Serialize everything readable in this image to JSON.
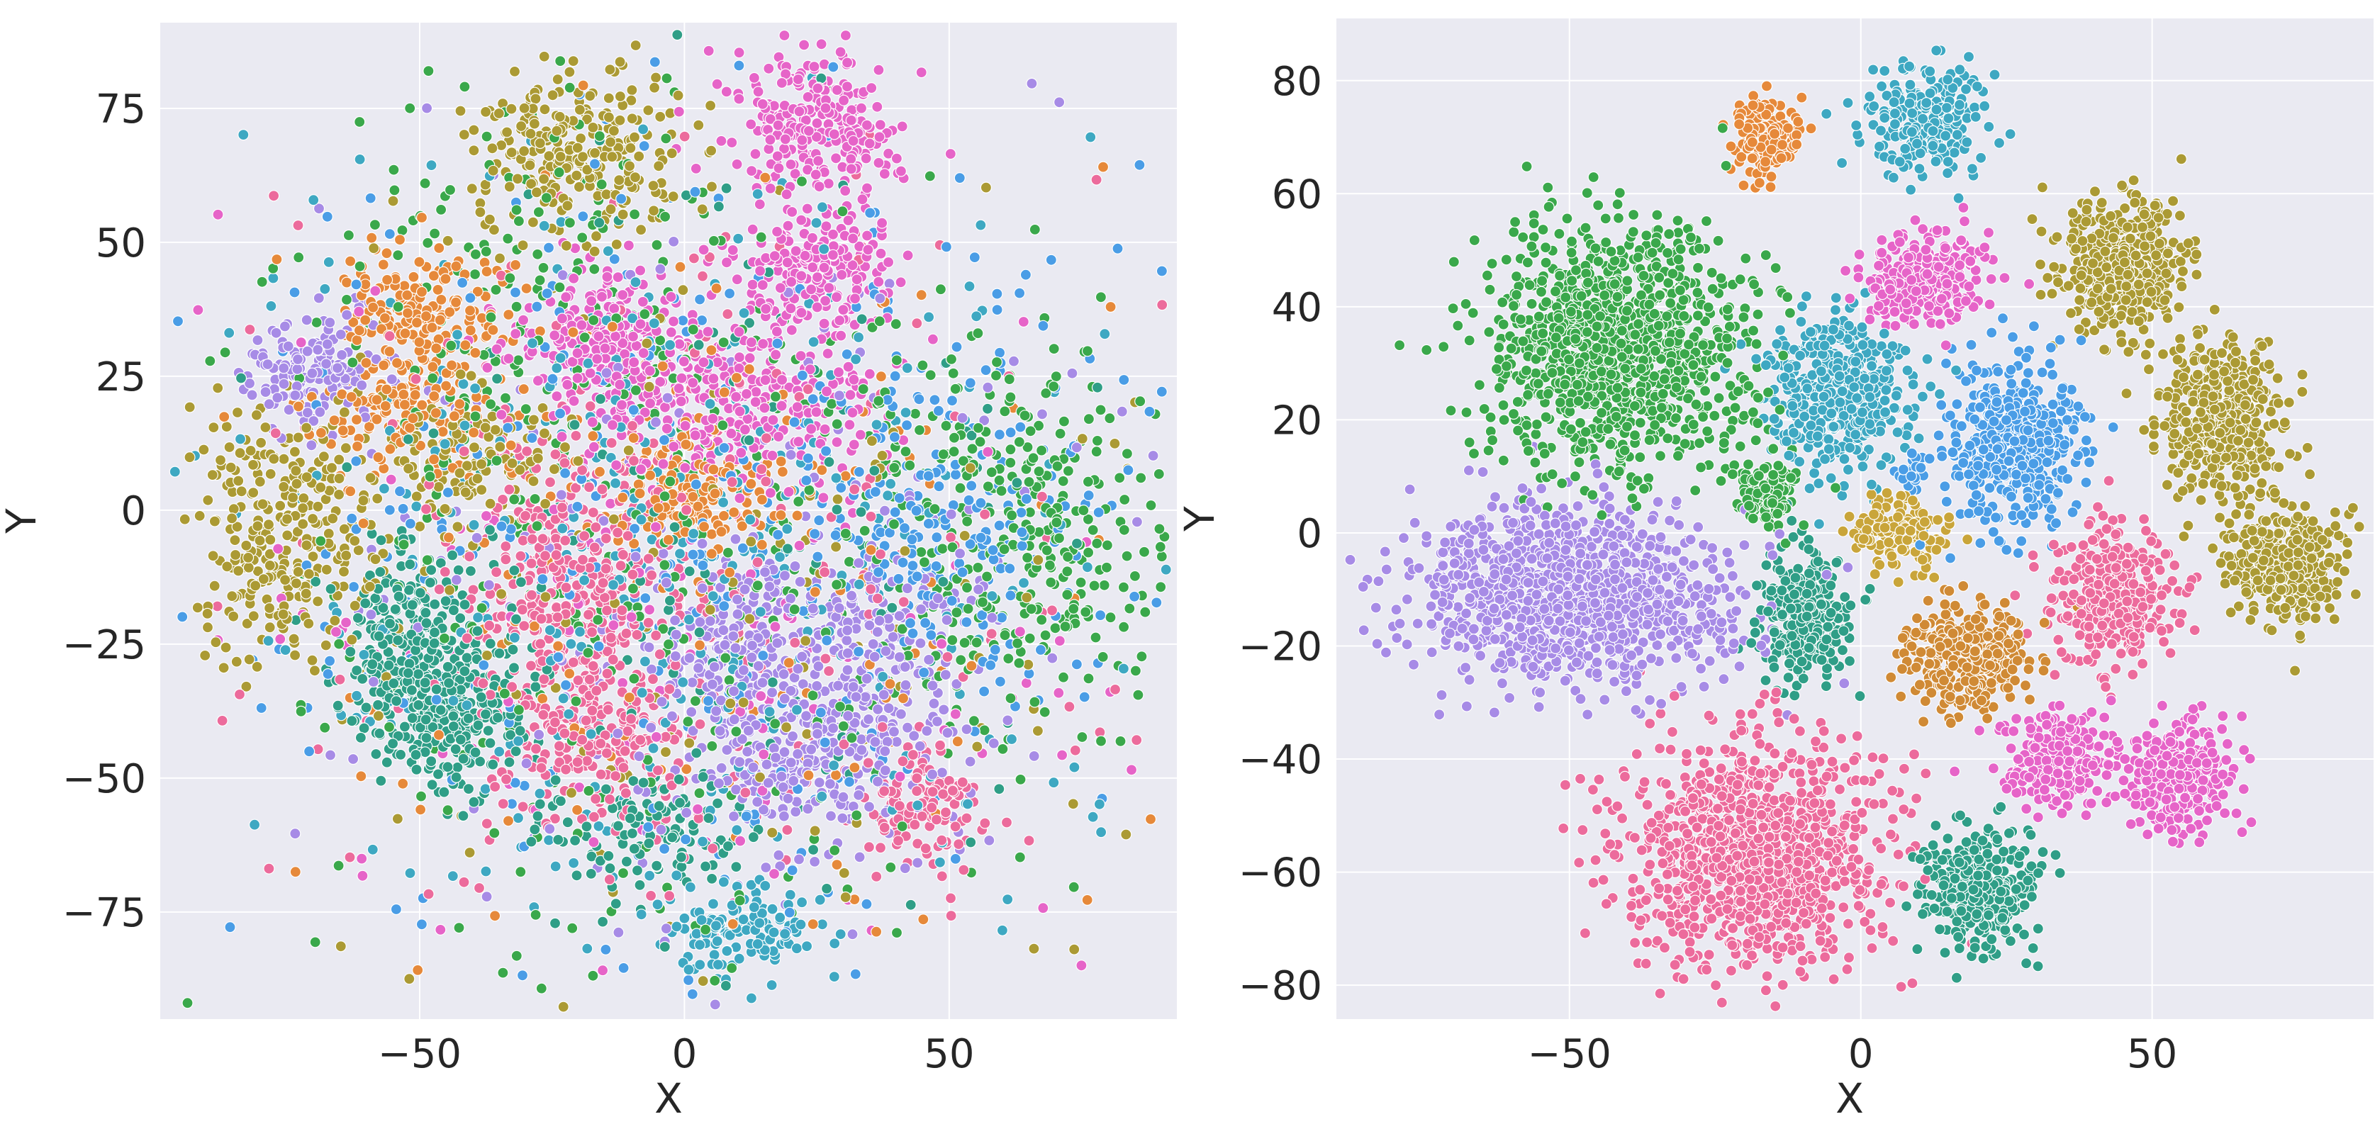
{
  "chart_data": [
    {
      "type": "scatter",
      "title": "",
      "xlabel": "X",
      "ylabel": "Y",
      "xlim": [
        -99,
        93
      ],
      "ylim": [
        -95,
        91
      ],
      "xticks": [
        -50,
        0,
        50
      ],
      "yticks": [
        -75,
        -50,
        -25,
        0,
        25,
        50,
        75
      ],
      "xtick_labels": [
        "−50",
        "0",
        "50"
      ],
      "ytick_labels": [
        "−75",
        "−50",
        "−25",
        "0",
        "25",
        "50",
        "75"
      ],
      "grid": true,
      "background": "#eaeaf2",
      "series": [
        {
          "color": "#e6893a",
          "clusters": [
            {
              "x": -50,
              "y": 37,
              "sx": 8,
              "sy": 6,
              "n": 180
            },
            {
              "x": 0,
              "y": 3,
              "sx": 7,
              "sy": 5,
              "n": 160
            },
            {
              "x": -52,
              "y": 18,
              "sx": 8,
              "sy": 6,
              "n": 150
            },
            {
              "x": 0,
              "y": -10,
              "sx": 40,
              "sy": 35,
              "n": 180
            }
          ]
        },
        {
          "color": "#ab9a34",
          "clusters": [
            {
              "x": -20,
              "y": 67,
              "sx": 10,
              "sy": 8,
              "n": 260
            },
            {
              "x": -75,
              "y": -5,
              "sx": 9,
              "sy": 12,
              "n": 300
            },
            {
              "x": -40,
              "y": 10,
              "sx": 8,
              "sy": 6,
              "n": 120
            },
            {
              "x": 0,
              "y": -10,
              "sx": 42,
              "sy": 38,
              "n": 160
            }
          ]
        },
        {
          "color": "#3aa84b",
          "clusters": [
            {
              "x": 65,
              "y": -5,
              "sx": 14,
              "sy": 16,
              "n": 300
            },
            {
              "x": 0,
              "y": -10,
              "sx": 40,
              "sy": 36,
              "n": 380
            },
            {
              "x": -30,
              "y": 40,
              "sx": 20,
              "sy": 20,
              "n": 140
            }
          ]
        },
        {
          "color": "#2f9e87",
          "clusters": [
            {
              "x": -50,
              "y": -25,
              "sx": 8,
              "sy": 9,
              "n": 260
            },
            {
              "x": -45,
              "y": -38,
              "sx": 8,
              "sy": 7,
              "n": 220
            },
            {
              "x": -5,
              "y": -60,
              "sx": 10,
              "sy": 6,
              "n": 120
            },
            {
              "x": 0,
              "y": -10,
              "sx": 38,
              "sy": 36,
              "n": 140
            }
          ]
        },
        {
          "color": "#3ea8c2",
          "clusters": [
            {
              "x": 0,
              "y": -10,
              "sx": 40,
              "sy": 36,
              "n": 380
            },
            {
              "x": 10,
              "y": -78,
              "sx": 8,
              "sy": 4,
              "n": 120
            }
          ]
        },
        {
          "color": "#4a9de6",
          "clusters": [
            {
              "x": 0,
              "y": -10,
              "sx": 40,
              "sy": 36,
              "n": 360
            },
            {
              "x": 50,
              "y": -5,
              "sx": 15,
              "sy": 15,
              "n": 160
            }
          ]
        },
        {
          "color": "#a78be6",
          "clusters": [
            {
              "x": -70,
              "y": 27,
              "sx": 6,
              "sy": 5,
              "n": 160
            },
            {
              "x": 25,
              "y": -45,
              "sx": 12,
              "sy": 8,
              "n": 260
            },
            {
              "x": 35,
              "y": -25,
              "sx": 10,
              "sy": 10,
              "n": 200
            },
            {
              "x": 10,
              "y": -25,
              "sx": 8,
              "sy": 8,
              "n": 160
            },
            {
              "x": 0,
              "y": -10,
              "sx": 40,
              "sy": 36,
              "n": 200
            }
          ]
        },
        {
          "color": "#e664c8",
          "clusters": [
            {
              "x": 25,
              "y": 72,
              "sx": 8,
              "sy": 7,
              "n": 260
            },
            {
              "x": 25,
              "y": 45,
              "sx": 7,
              "sy": 6,
              "n": 200
            },
            {
              "x": -15,
              "y": 32,
              "sx": 8,
              "sy": 6,
              "n": 200
            },
            {
              "x": 10,
              "y": 20,
              "sx": 14,
              "sy": 8,
              "n": 300
            },
            {
              "x": 0,
              "y": -10,
              "sx": 40,
              "sy": 36,
              "n": 180
            }
          ]
        },
        {
          "color": "#ec6b9c",
          "clusters": [
            {
              "x": -20,
              "y": -10,
              "sx": 10,
              "sy": 12,
              "n": 260
            },
            {
              "x": -15,
              "y": -40,
              "sx": 10,
              "sy": 10,
              "n": 260
            },
            {
              "x": 45,
              "y": -55,
              "sx": 6,
              "sy": 6,
              "n": 120
            },
            {
              "x": 0,
              "y": -10,
              "sx": 40,
              "sy": 36,
              "n": 220
            }
          ]
        }
      ]
    },
    {
      "type": "scatter",
      "title": "",
      "xlabel": "X",
      "ylabel": "Y",
      "xlim": [
        -90,
        88
      ],
      "ylim": [
        -86,
        91
      ],
      "xticks": [
        -50,
        0,
        50
      ],
      "yticks": [
        -80,
        -60,
        -40,
        -20,
        0,
        20,
        40,
        60,
        80
      ],
      "xtick_labels": [
        "−50",
        "0",
        "50"
      ],
      "ytick_labels": [
        "−80",
        "−60",
        "−40",
        "−20",
        "0",
        "20",
        "40",
        "60",
        "80"
      ],
      "grid": true,
      "background": "#eaeaf2",
      "series": [
        {
          "color": "#e6893a",
          "clusters": [
            {
              "x": -16,
              "y": 70,
              "sx": 3,
              "sy": 3.5,
              "n": 150
            }
          ]
        },
        {
          "color": "#3ea8c2",
          "clusters": [
            {
              "x": 11,
              "y": 73,
              "sx": 5,
              "sy": 5,
              "n": 250
            },
            {
              "x": -4,
              "y": 25,
              "sx": 6,
              "sy": 6.5,
              "n": 450
            }
          ]
        },
        {
          "color": "#e664c8",
          "clusters": [
            {
              "x": 11,
              "y": 45,
              "sx": 5,
              "sy": 4,
              "n": 280
            },
            {
              "x": 34,
              "y": -40,
              "sx": 5,
              "sy": 4,
              "n": 250
            },
            {
              "x": 55,
              "y": -43,
              "sx": 5,
              "sy": 5,
              "n": 280
            }
          ]
        },
        {
          "color": "#3aa84b",
          "clusters": [
            {
              "x": -42,
              "y": 33,
              "sx": 11,
              "sy": 11,
              "n": 1100
            },
            {
              "x": -16,
              "y": 7,
              "sx": 3,
              "sy": 3,
              "n": 120
            }
          ]
        },
        {
          "color": "#ab9a34",
          "clusters": [
            {
              "x": 45,
              "y": 47,
              "sx": 5,
              "sy": 6,
              "n": 450
            },
            {
              "x": 62,
              "y": 20,
              "sx": 5,
              "sy": 7,
              "n": 450
            },
            {
              "x": 73,
              "y": -5,
              "sx": 5,
              "sy": 5,
              "n": 350
            }
          ]
        },
        {
          "color": "#4a9de6",
          "clusters": [
            {
              "x": 26,
              "y": 16,
              "sx": 6,
              "sy": 7,
              "n": 450
            },
            {
              "x": 9,
              "y": 11,
              "sx": 1.5,
              "sy": 2,
              "n": 30
            }
          ]
        },
        {
          "color": "#a78be6",
          "clusters": [
            {
              "x": -50,
              "y": -11,
              "sx": 14,
              "sy": 8,
              "n": 1100
            }
          ]
        },
        {
          "color": "#c9a53a",
          "clusters": [
            {
              "x": 7,
              "y": 0,
              "sx": 4,
              "sy": 3,
              "n": 160
            }
          ]
        },
        {
          "color": "#ec6b9c",
          "clusters": [
            {
              "x": 43,
              "y": -12,
              "sx": 5,
              "sy": 6,
              "n": 350
            },
            {
              "x": -18,
              "y": -57,
              "sx": 11,
              "sy": 10,
              "n": 1100
            }
          ]
        },
        {
          "color": "#2f9e87",
          "clusters": [
            {
              "x": -10,
              "y": -15,
              "sx": 4,
              "sy": 6,
              "n": 300
            },
            {
              "x": 20,
              "y": -63,
              "sx": 5,
              "sy": 5,
              "n": 350
            }
          ]
        },
        {
          "color": "#d08a35",
          "clusters": [
            {
              "x": 18,
              "y": -22,
              "sx": 5,
              "sy": 4.5,
              "n": 350
            }
          ]
        }
      ]
    }
  ]
}
